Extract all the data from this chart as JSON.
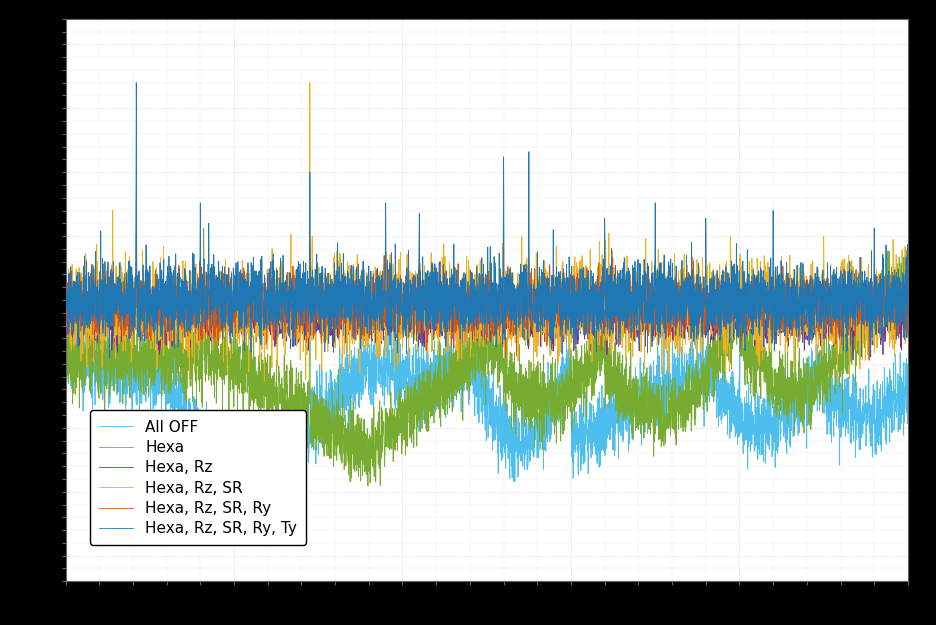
{
  "title": "",
  "xlabel": "",
  "ylabel": "",
  "background_color": "#000000",
  "plot_background_color": "#ffffff",
  "grid_color": "#c8c8c8",
  "grid_style": "dotted",
  "legend_labels": [
    "Hexa, Rz, SR, Ry, Ty",
    "Hexa, Rz, SR, Ry",
    "Hexa, Rz, SR",
    "Hexa, Rz",
    "Hexa",
    "All OFF"
  ],
  "line_colors": [
    "#1f77b4",
    "#d95319",
    "#edb120",
    "#7e2f8e",
    "#77ac30",
    "#4dbeee"
  ],
  "n_points": 5000,
  "seed": 42
}
